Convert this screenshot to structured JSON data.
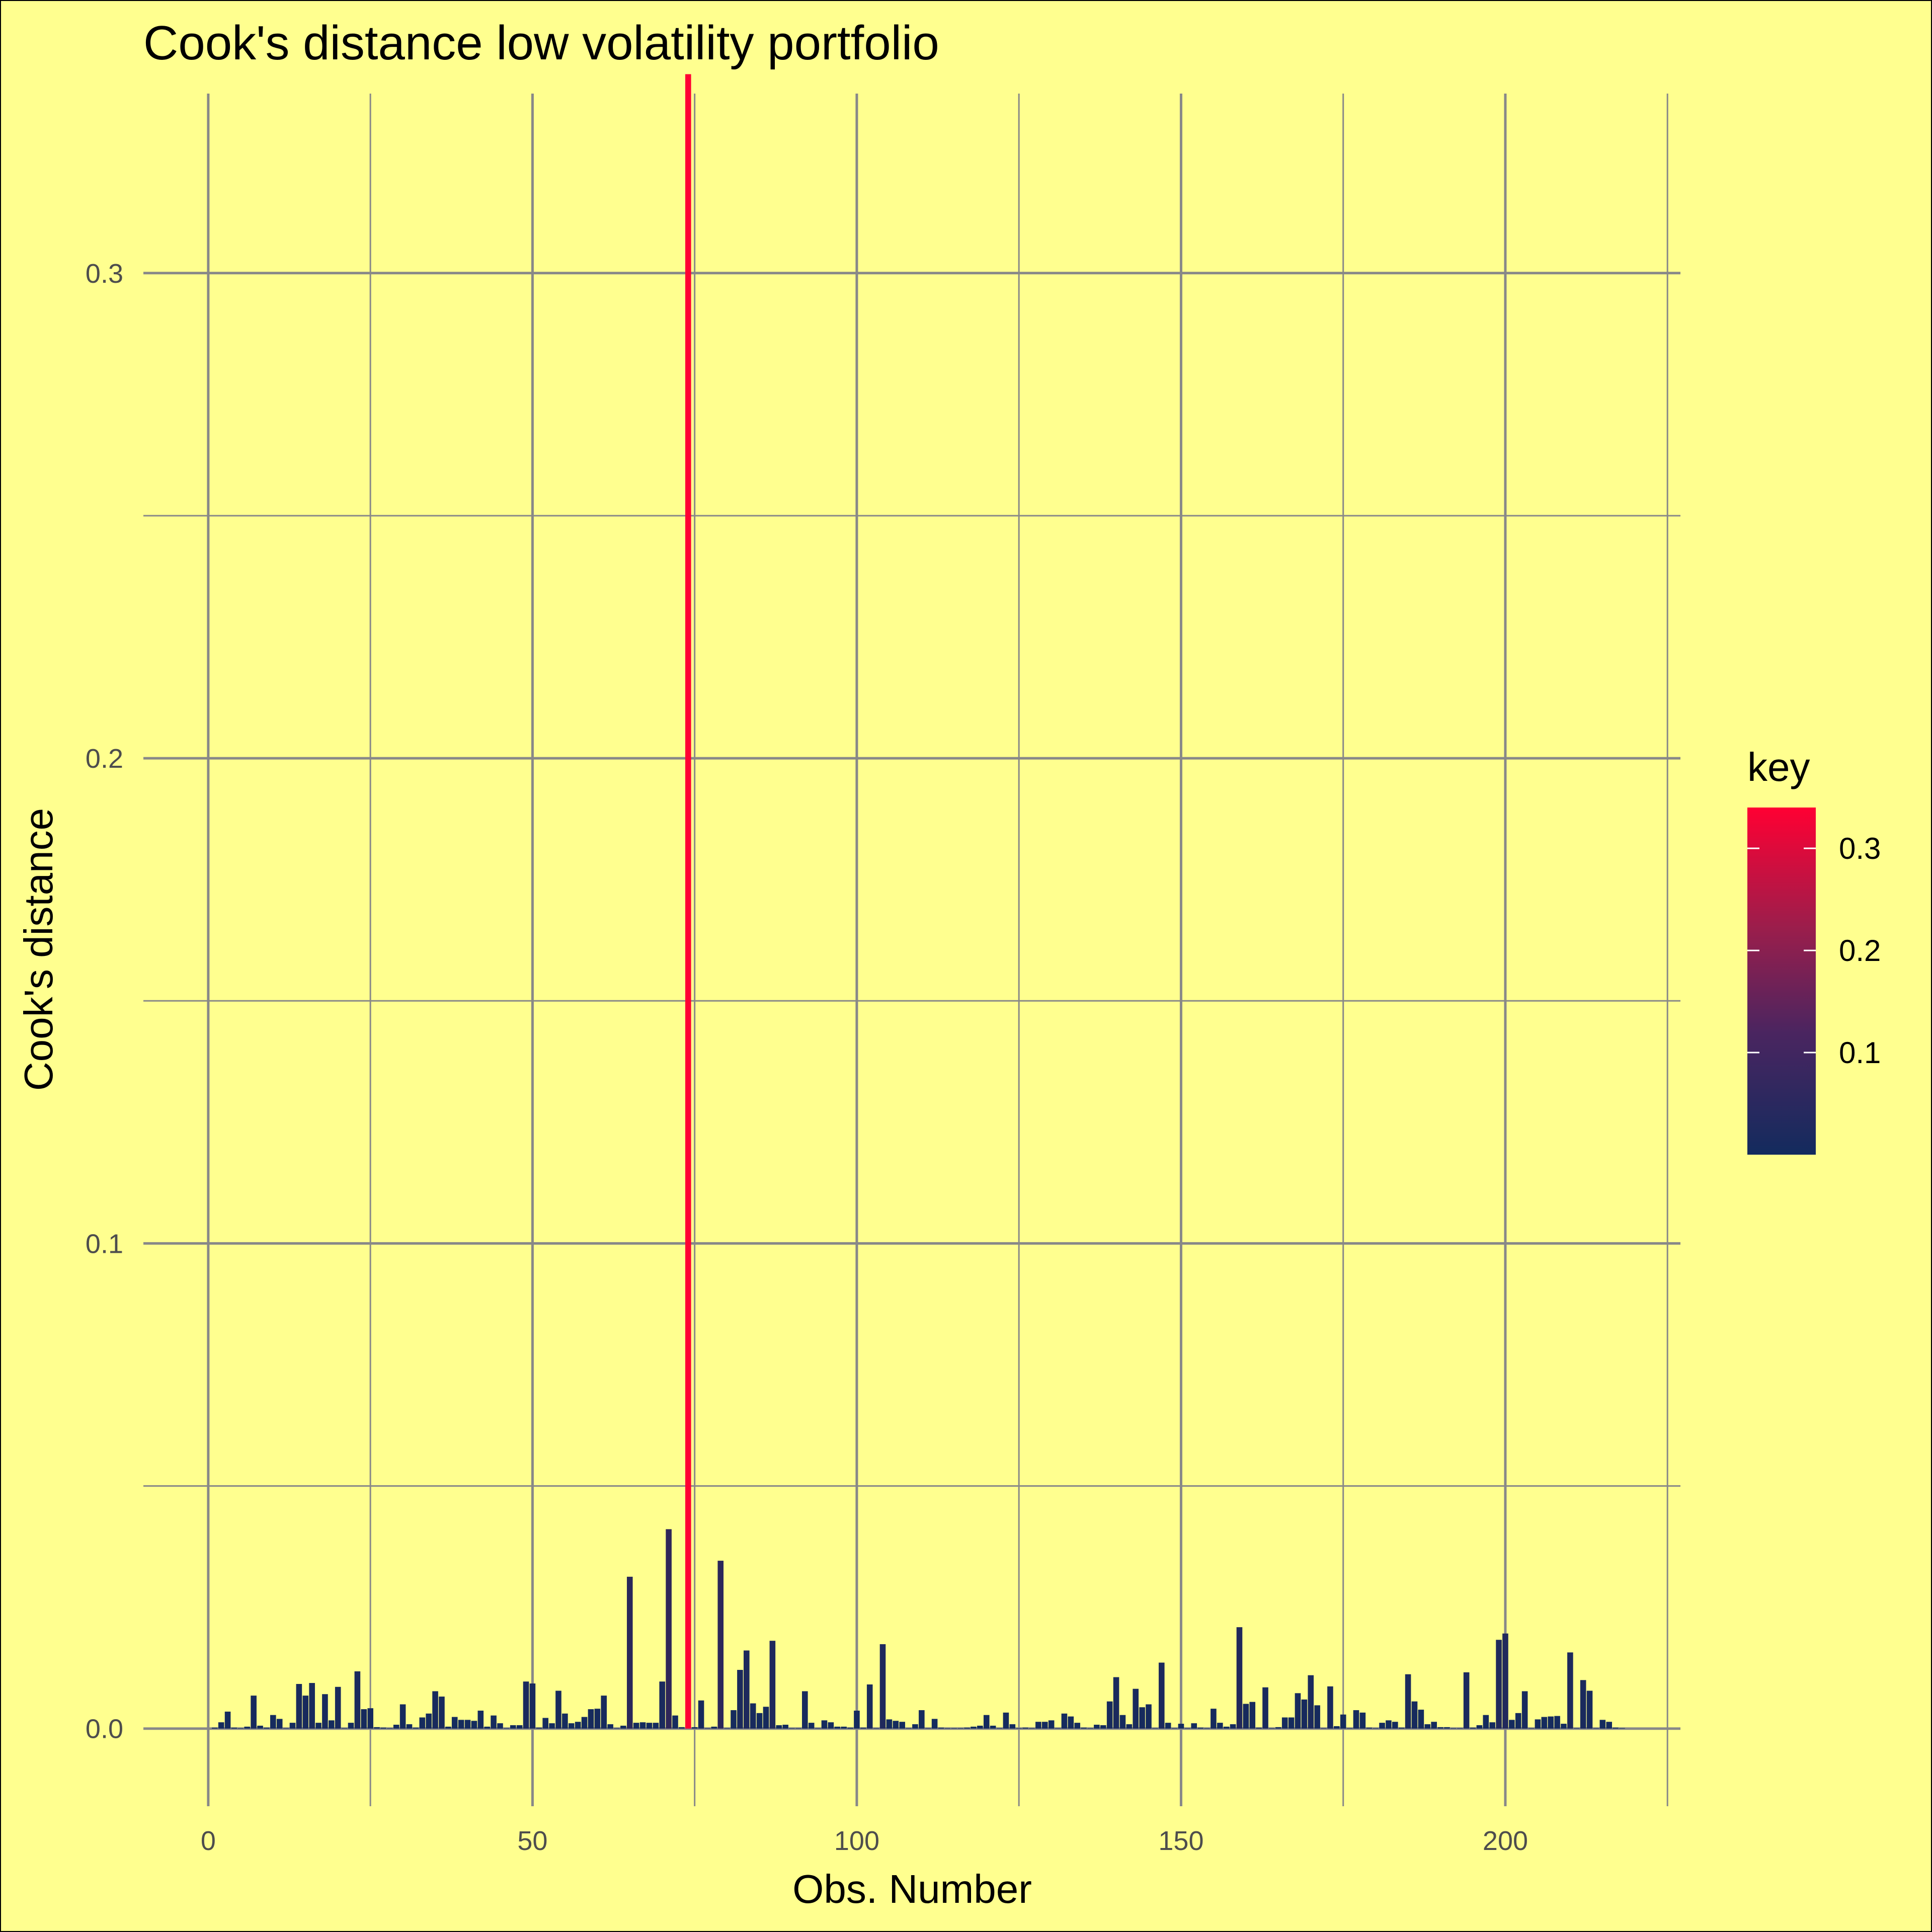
{
  "chart_data": {
    "type": "bar",
    "title": "Cook's distance low volatility portfolio",
    "xlabel": "Obs. Number",
    "ylabel": "Cook's distance",
    "xlim": [
      -10,
      227
    ],
    "ylim": [
      -0.016,
      0.337
    ],
    "x_ticks": [
      0,
      50,
      100,
      150,
      200
    ],
    "x_tick_labels": [
      "0",
      "50",
      "100",
      "150",
      "200"
    ],
    "y_ticks": [
      0.0,
      0.1,
      0.2,
      0.3
    ],
    "y_tick_labels": [
      "0.0",
      "0.1",
      "0.2",
      "0.3"
    ],
    "grid": true,
    "legend": {
      "title": "key",
      "placement": "right",
      "type": "colorbar",
      "low_color": "#132B5E",
      "high_color": "#FF0033",
      "range": [
        0.0,
        0.34
      ],
      "ticks": [
        0.1,
        0.2,
        0.3
      ],
      "tick_labels": [
        "0.1",
        "0.2",
        "0.3"
      ]
    },
    "x": [
      1,
      2,
      3,
      4,
      5,
      6,
      7,
      8,
      9,
      10,
      11,
      12,
      13,
      14,
      15,
      16,
      17,
      18,
      19,
      20,
      21,
      22,
      23,
      24,
      25,
      26,
      27,
      28,
      29,
      30,
      31,
      32,
      33,
      34,
      35,
      36,
      37,
      38,
      39,
      40,
      41,
      42,
      43,
      44,
      45,
      46,
      47,
      48,
      49,
      50,
      51,
      52,
      53,
      54,
      55,
      56,
      57,
      58,
      59,
      60,
      61,
      62,
      63,
      64,
      65,
      66,
      67,
      68,
      69,
      70,
      71,
      72,
      73,
      74,
      75,
      76,
      77,
      78,
      79,
      80,
      81,
      82,
      83,
      84,
      85,
      86,
      87,
      88,
      89,
      90,
      91,
      92,
      93,
      94,
      95,
      96,
      97,
      98,
      99,
      100,
      101,
      102,
      103,
      104,
      105,
      106,
      107,
      108,
      109,
      110,
      111,
      112,
      113,
      114,
      115,
      116,
      117,
      118,
      119,
      120,
      121,
      122,
      123,
      124,
      125,
      126,
      127,
      128,
      129,
      130,
      131,
      132,
      133,
      134,
      135,
      136,
      137,
      138,
      139,
      140,
      141,
      142,
      143,
      144,
      145,
      146,
      147,
      148,
      149,
      150,
      151,
      152,
      153,
      154,
      155,
      156,
      157,
      158,
      159,
      160,
      161,
      162,
      163,
      164,
      165,
      166,
      167,
      168,
      169,
      170,
      171,
      172,
      173,
      174,
      175,
      176,
      177,
      178,
      179,
      180,
      181,
      182,
      183,
      184,
      185,
      186,
      187,
      188,
      189,
      190,
      191,
      192,
      193,
      194,
      195,
      196,
      197,
      198,
      199,
      200,
      201,
      202,
      203,
      204,
      205,
      206,
      207,
      208,
      209,
      210,
      211,
      212,
      213,
      214,
      215,
      216,
      217,
      218
    ],
    "values": [
      0.0002,
      0.0013,
      0.0035,
      0.0002,
      0.0001,
      0.0004,
      0.0068,
      0.0006,
      0.0002,
      0.0028,
      0.002,
      0.0001,
      0.0012,
      0.0092,
      0.0068,
      0.0094,
      0.0012,
      0.0071,
      0.0017,
      0.0086,
      0.0001,
      0.0012,
      0.0118,
      0.004,
      0.0042,
      0.0003,
      0.0002,
      0.0001,
      0.0008,
      0.005,
      0.0009,
      0.0002,
      0.0023,
      0.0031,
      0.0077,
      0.0066,
      0.0004,
      0.0024,
      0.0018,
      0.0018,
      0.0016,
      0.0037,
      0.0004,
      0.0027,
      0.0011,
      0.0001,
      0.0007,
      0.0007,
      0.0097,
      0.0093,
      0.0002,
      0.0022,
      0.0011,
      0.0078,
      0.0031,
      0.0011,
      0.0014,
      0.0024,
      0.004,
      0.0041,
      0.0068,
      0.0009,
      0.0001,
      0.0006,
      0.0313,
      0.0012,
      0.0013,
      0.0012,
      0.0012,
      0.0097,
      0.0411,
      0.0027,
      0.0003,
      0.341,
      0.0003,
      0.0058,
      0.0001,
      0.0004,
      0.0346,
      0.0001,
      0.0038,
      0.0121,
      0.0161,
      0.0052,
      0.0032,
      0.0045,
      0.0181,
      0.0007,
      0.0008,
      0.0001,
      0.0001,
      0.0077,
      0.0012,
      0.0001,
      0.0017,
      0.0013,
      0.0004,
      0.0004,
      0.0002,
      0.0037,
      0.0002,
      0.0091,
      0.0001,
      0.0174,
      0.0019,
      0.0016,
      0.0014,
      0.0001,
      0.0009,
      0.0038,
      0.0001,
      0.002,
      0.0002,
      0.0001,
      0.0001,
      0.0001,
      0.0002,
      0.0004,
      0.0006,
      0.0028,
      0.0006,
      0.0001,
      0.0033,
      0.0009,
      0.0001,
      0.0002,
      0.0001,
      0.0014,
      0.0014,
      0.0017,
      0.0001,
      0.0031,
      0.0025,
      0.0012,
      0.0002,
      0.0001,
      0.0008,
      0.0007,
      0.0056,
      0.0106,
      0.0028,
      0.0009,
      0.0082,
      0.0044,
      0.005,
      0.0001,
      0.0136,
      0.0012,
      0.0001,
      0.001,
      0.0001,
      0.0011,
      0.0002,
      0.0001,
      0.0041,
      0.0012,
      0.0004,
      0.0009,
      0.0209,
      0.0051,
      0.0055,
      0.0002,
      0.0085,
      0.0001,
      0.0003,
      0.0023,
      0.0023,
      0.0073,
      0.006,
      0.011,
      0.0048,
      0.0001,
      0.0087,
      0.0005,
      0.0029,
      0.0001,
      0.0038,
      0.0033,
      0.0002,
      0.0001,
      0.0012,
      0.0017,
      0.0014,
      0.0002,
      0.0112,
      0.0056,
      0.0039,
      0.0009,
      0.0014,
      0.0003,
      0.0003,
      0.0001,
      0.0001,
      0.0116,
      0.0002,
      0.0007,
      0.0028,
      0.0013,
      0.0183,
      0.0196,
      0.0018,
      0.0032,
      0.0077,
      0.0001,
      0.0019,
      0.0024,
      0.0025,
      0.0026,
      0.001,
      0.0157,
      0.0001,
      0.01,
      0.0078,
      0.0001,
      0.0018,
      0.0014,
      0.0002,
      0.0001
    ]
  }
}
